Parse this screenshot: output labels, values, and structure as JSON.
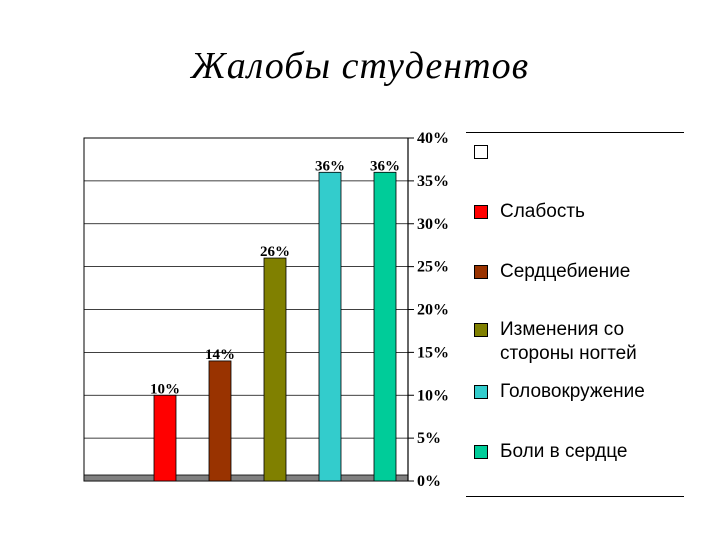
{
  "chart_data": {
    "type": "bar",
    "title": "Жалобы студентов",
    "categories": [
      "Слабость",
      "Сердцебиение",
      "Изменения со стороны ногтей",
      "Головокружение",
      "Боли в сердце"
    ],
    "values": [
      10,
      14,
      26,
      36,
      36
    ],
    "data_labels": [
      "10%",
      "14%",
      "26%",
      "36%",
      "36%"
    ],
    "colors": [
      "#ff0000",
      "#993300",
      "#808000",
      "#33cccc",
      "#00cc99"
    ],
    "ylim": [
      0,
      40
    ],
    "yticks": [
      "0%",
      "5%",
      "10%",
      "15%",
      "20%",
      "25%",
      "30%",
      "35%",
      "40%"
    ],
    "y_axis_position": "right",
    "grid": true,
    "legend": {
      "position": "right",
      "entries": [
        {
          "label": "",
          "color": "#ffffff"
        },
        {
          "label": "Слабость",
          "color": "#ff0000"
        },
        {
          "label": "Сердцебиение",
          "color": "#993300"
        },
        {
          "label": "Изменения со стороны ногтей",
          "color": "#808000"
        },
        {
          "label": "Головокружение",
          "color": "#33cccc"
        },
        {
          "label": "Боли в сердце",
          "color": "#00cc99"
        }
      ]
    }
  }
}
